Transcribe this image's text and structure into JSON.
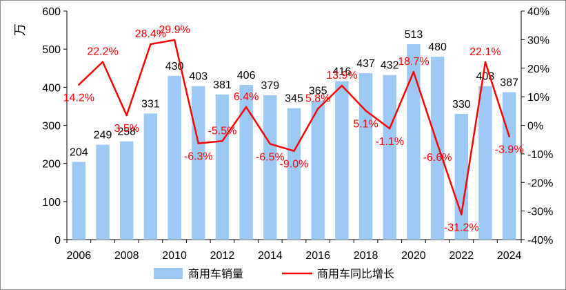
{
  "chart_data": {
    "type": "bar",
    "categories": [
      "2006",
      "2007",
      "2008",
      "2009",
      "2010",
      "2011",
      "2012",
      "2013",
      "2014",
      "2015",
      "2016",
      "2017",
      "2018",
      "2019",
      "2020",
      "2021",
      "2022",
      "2023",
      "2024"
    ],
    "x_tick_labels": [
      "2006",
      "2008",
      "2010",
      "2012",
      "2014",
      "2016",
      "2018",
      "2020",
      "2022",
      "2024"
    ],
    "series": [
      {
        "name": "商用车销量",
        "type": "bar",
        "axis": "left",
        "color": "#9ccaf4",
        "values": [
          204,
          249,
          258,
          331,
          430,
          403,
          381,
          406,
          379,
          345,
          365,
          416,
          437,
          432,
          513,
          480,
          330,
          403,
          387
        ],
        "labels": [
          "204",
          "249",
          "258",
          "331",
          "430",
          "403",
          "381",
          "406",
          "379",
          "345",
          "365",
          "416",
          "437",
          "432",
          "513",
          "480",
          "330",
          "403",
          "387"
        ]
      },
      {
        "name": "商用车同比增长",
        "type": "line",
        "axis": "right",
        "color": "#ff0000",
        "values": [
          14.2,
          22.2,
          3.5,
          28.4,
          29.9,
          -6.3,
          -5.5,
          6.4,
          -6.5,
          -9.0,
          5.8,
          13.9,
          5.1,
          -1.1,
          18.7,
          -6.6,
          -31.2,
          22.1,
          -3.9
        ],
        "labels": [
          "14.2%",
          "22.2%",
          "3.5%",
          "28.4%",
          "29.9%",
          "-6.3%",
          "-5.5%",
          "6.4%",
          "-6.5%",
          "-9.0%",
          "5.8%",
          "13.9%",
          "5.1%",
          "-1.1%",
          "18.7%",
          "-6.6%",
          "-31.2%",
          "22.1%",
          "-3.9%"
        ]
      }
    ],
    "y_left": {
      "label": "万",
      "range": [
        0,
        600
      ],
      "ticks": [
        0,
        100,
        200,
        300,
        400,
        500,
        600
      ],
      "tick_labels": [
        "0",
        "100",
        "200",
        "300",
        "400",
        "500",
        "600"
      ]
    },
    "y_right": {
      "range": [
        -40,
        40
      ],
      "ticks": [
        -40,
        -30,
        -20,
        -10,
        0,
        10,
        20,
        30,
        40
      ],
      "tick_labels": [
        "-40%",
        "-30%",
        "-20%",
        "-10%",
        "0%",
        "10%",
        "20%",
        "30%",
        "40%"
      ]
    },
    "grid": false,
    "legend": "bottom"
  }
}
